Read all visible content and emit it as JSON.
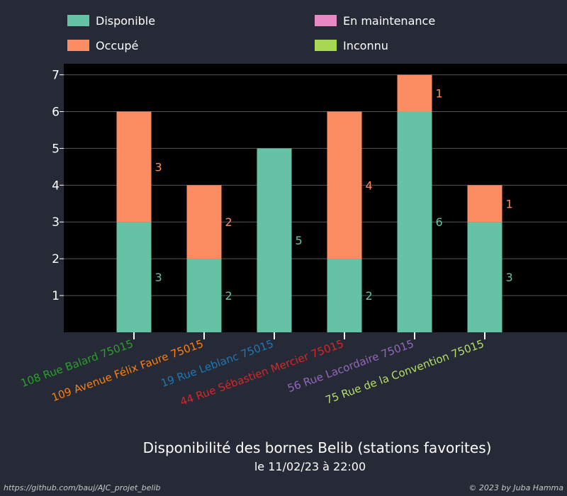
{
  "chart_data": {
    "type": "bar",
    "stacked": true,
    "title": "Disponibilité des bornes Belib (stations favorites)",
    "subtitle": "le 11/02/23 à 22:00",
    "categories": [
      "108 Rue Balard 75015",
      "109 Avenue Félix Faure 75015",
      "19 Rue Leblanc 75015",
      "44 Rue Sébastien Mercier 75015",
      "56 Rue Lacordaire 75015",
      "75 Rue de la Convention 75015"
    ],
    "category_colors": [
      "#2ca02c",
      "#ff7f0e",
      "#1f77b4",
      "#d62728",
      "#9467bd",
      "#b5de6b"
    ],
    "series": [
      {
        "name": "Disponible",
        "color": "#66c2a5",
        "values": [
          3,
          2,
          5,
          2,
          6,
          3
        ]
      },
      {
        "name": "Occupé",
        "color": "#fc8d62",
        "values": [
          3,
          2,
          0,
          4,
          1,
          1
        ]
      },
      {
        "name": "En maintenance",
        "color": "#e78ac3",
        "values": [
          0,
          0,
          0,
          0,
          0,
          0
        ]
      },
      {
        "name": "Inconnu",
        "color": "#a6d854",
        "values": [
          0,
          0,
          0,
          0,
          0,
          0
        ]
      }
    ],
    "yticks": [
      1,
      2,
      3,
      4,
      5,
      6,
      7
    ],
    "ylim": [
      0,
      7.3
    ],
    "grid": true,
    "legend_position": "top"
  },
  "footer": {
    "left": "https://github.com/bauj/AJC_projet_belib",
    "right": "© 2023 by Juba Hamma"
  }
}
